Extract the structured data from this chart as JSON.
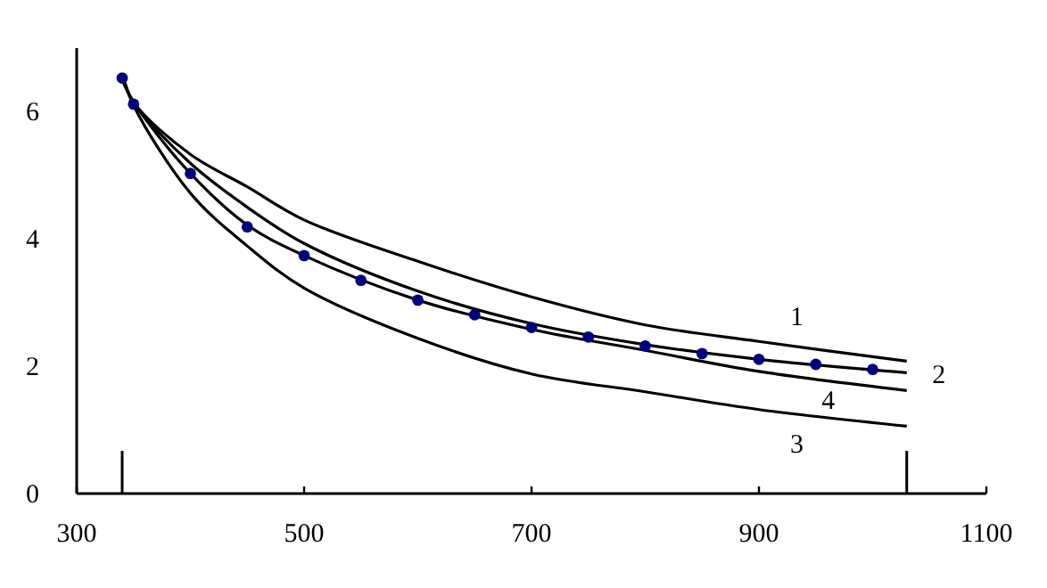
{
  "chart_data": {
    "type": "line",
    "xlim": [
      300,
      1100
    ],
    "xticks": [
      300,
      500,
      700,
      900,
      1100
    ],
    "ylim": [
      0,
      7
    ],
    "yticks": [
      0,
      2,
      4,
      6
    ],
    "grid": false,
    "marker": "none",
    "line_style": "solid",
    "series": [
      {
        "name": "1",
        "color": "#000000",
        "x": [
          340,
          350,
          400,
          450,
          500,
          600,
          700,
          800,
          900,
          1030
        ],
        "values": [
          6.6,
          6.15,
          5.33,
          4.82,
          4.3,
          3.65,
          3.09,
          2.65,
          2.39,
          2.08
        ]
      },
      {
        "name": "2",
        "color": "#000000",
        "x": [
          340,
          350,
          400,
          450,
          500,
          600,
          700,
          800,
          900,
          1030
        ],
        "values": [
          6.55,
          6.15,
          5.19,
          4.5,
          3.93,
          3.18,
          2.67,
          2.34,
          2.11,
          1.9
        ]
      },
      {
        "name": "3",
        "color": "#000000",
        "x": [
          340,
          350,
          400,
          450,
          500,
          600,
          700,
          800,
          900,
          1030
        ],
        "values": [
          6.6,
          6.1,
          4.72,
          3.89,
          3.23,
          2.44,
          1.88,
          1.6,
          1.32,
          1.06
        ]
      },
      {
        "name": "4",
        "color": "#000000",
        "x": [
          340,
          350,
          400,
          450,
          500,
          600,
          700,
          800,
          900,
          1030
        ],
        "values": [
          6.5,
          6.15,
          5.03,
          4.22,
          3.74,
          3.04,
          2.58,
          2.25,
          1.92,
          1.62
        ]
      },
      {
        "type": "scatter",
        "marker": "circle",
        "color": "#000080",
        "x": [
          340,
          350,
          400,
          450,
          500,
          550,
          600,
          650,
          700,
          750,
          800,
          850,
          900,
          950,
          1000
        ],
        "values": [
          6.53,
          6.12,
          5.03,
          4.19,
          3.74,
          3.35,
          3.04,
          2.81,
          2.61,
          2.46,
          2.32,
          2.2,
          2.11,
          2.03,
          1.95
        ]
      }
    ],
    "ref_lines": [
      {
        "axis": "x",
        "value": 340
      },
      {
        "axis": "x",
        "value": 1030
      }
    ]
  }
}
